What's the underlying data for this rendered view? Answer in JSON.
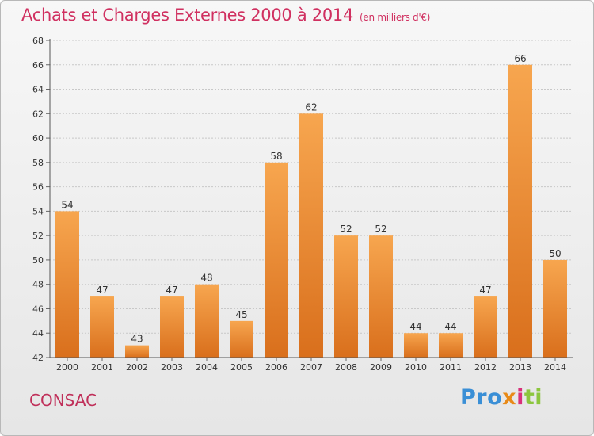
{
  "header": {
    "title": "Achats et Charges Externes 2000 à 2014",
    "subtitle": "(en milliers d'€)"
  },
  "footer": {
    "commune": "CONSAC",
    "brand_parts": [
      "Pro",
      "x",
      "i",
      "ti"
    ]
  },
  "colors": {
    "title": "#d03060",
    "bar_light": "#f7a64f",
    "bar_dark": "#d96f1c",
    "grid": "#c8c8c8"
  },
  "chart_data": {
    "type": "bar",
    "title": "Achats et Charges Externes 2000 à 2014",
    "subtitle": "(en milliers d'€)",
    "xlabel": "",
    "ylabel": "",
    "categories": [
      "2000",
      "2001",
      "2002",
      "2003",
      "2004",
      "2005",
      "2006",
      "2007",
      "2008",
      "2009",
      "2010",
      "2011",
      "2012",
      "2013",
      "2014"
    ],
    "values": [
      54,
      47,
      43,
      47,
      48,
      45,
      58,
      62,
      52,
      52,
      44,
      44,
      47,
      66,
      50
    ],
    "ylim": [
      42,
      68
    ],
    "yticks": [
      42,
      44,
      46,
      48,
      50,
      52,
      54,
      56,
      58,
      60,
      62,
      64,
      66,
      68
    ],
    "grid": true,
    "legend": "none"
  }
}
